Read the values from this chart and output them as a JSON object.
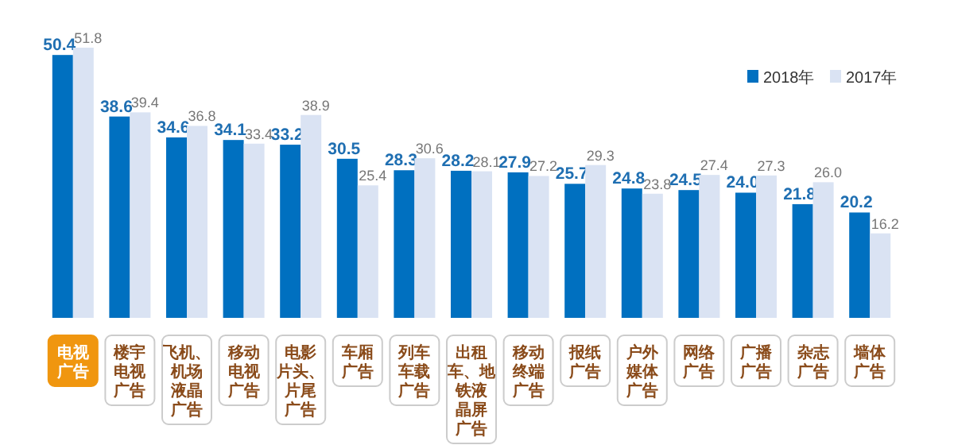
{
  "chart_data": {
    "type": "bar",
    "categories": [
      "电视广告",
      "楼宇电视广告",
      "飞机、机场液晶广告",
      "移动电视广告",
      "电影片头、片尾广告",
      "车厢广告",
      "列车车载广告",
      "出租车、地铁液晶屏广告",
      "移动终端广告",
      "报纸广告",
      "户外媒体广告",
      "网络广告",
      "广播广告",
      "杂志广告",
      "墙体广告"
    ],
    "series": [
      {
        "name": "2018年",
        "color": "#0070c0",
        "values": [
          50.4,
          38.6,
          34.6,
          34.1,
          33.2,
          30.5,
          28.3,
          28.2,
          27.9,
          25.7,
          24.8,
          24.5,
          24.0,
          21.8,
          20.2
        ],
        "value_labels": [
          "50.4",
          "38.6",
          "34.6",
          "34.1",
          "33.2",
          "30.5",
          "28.3",
          "28.2",
          "27.9",
          "25.7",
          "24.8",
          "24.5",
          "24.0",
          "21.8",
          "20.2"
        ]
      },
      {
        "name": "2017年",
        "color": "#dae3f3",
        "values": [
          51.8,
          39.4,
          36.8,
          33.4,
          38.9,
          25.4,
          30.6,
          28.1,
          27.2,
          29.3,
          23.8,
          27.4,
          27.3,
          26.0,
          16.2
        ],
        "value_labels": [
          "51.8",
          "39.4",
          "36.8",
          "33.4",
          "38.9",
          "25.4",
          "30.6",
          "28.1",
          "27.2",
          "29.3",
          "23.8",
          "27.4",
          "27.3",
          "26.0",
          "16.2"
        ]
      }
    ],
    "legend": "top right"
  }
}
